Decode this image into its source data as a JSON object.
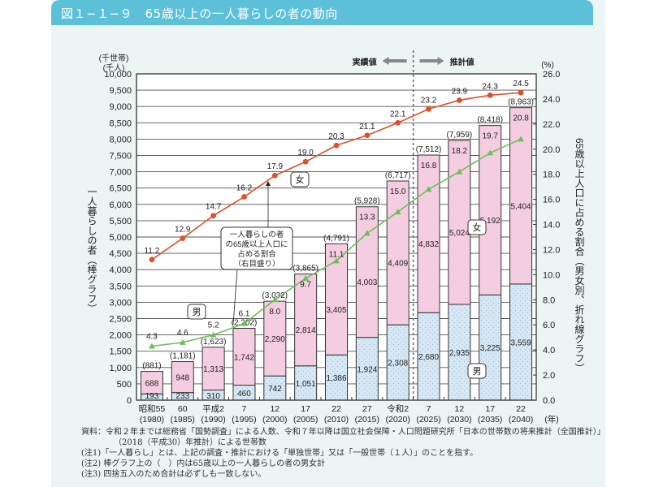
{
  "header": {
    "title": "図１−１−９　65歳以上の一人暮らしの者の動向"
  },
  "chart_data": {
    "type": "bar",
    "title": "65歳以上の一人暮らしの者の動向",
    "categories": [
      {
        "era": "昭和55",
        "year": "(1980)"
      },
      {
        "era": "60",
        "year": "(1985)"
      },
      {
        "era": "平成2",
        "year": "(1990)"
      },
      {
        "era": "7",
        "year": "(1995)"
      },
      {
        "era": "12",
        "year": "(2000)"
      },
      {
        "era": "17",
        "year": "(2005)"
      },
      {
        "era": "22",
        "year": "(2010)"
      },
      {
        "era": "27",
        "year": "(2015)"
      },
      {
        "era": "令和2",
        "year": "(2020)"
      },
      {
        "era": "7",
        "year": "(2025)"
      },
      {
        "era": "12",
        "year": "(2030)"
      },
      {
        "era": "17",
        "year": "(2035)"
      },
      {
        "era": "22",
        "year": "(2040)"
      }
    ],
    "x_unit": "(年)",
    "bar_series": [
      {
        "name": "男",
        "color": "#d6e8f5",
        "values": [
          193,
          233,
          310,
          460,
          742,
          1051,
          1386,
          1924,
          2308,
          2680,
          2935,
          3225,
          3559
        ]
      },
      {
        "name": "女",
        "color": "#f5cde0",
        "values": [
          688,
          948,
          1313,
          1742,
          2290,
          2814,
          3405,
          4003,
          4409,
          4832,
          5024,
          5192,
          5404
        ]
      }
    ],
    "bar_totals": [
      "(881)",
      "(1,181)",
      "(1,623)",
      "(2,202)",
      "(3,032)",
      "(3,865)",
      "(4,791)",
      "(5,928)",
      "(6,717)",
      "(7,512)",
      "(7,959)",
      "(8,418)",
      "(8,963)"
    ],
    "line_series": [
      {
        "name": "女",
        "color": "#e0502a",
        "marker": "circle",
        "values": [
          11.2,
          12.9,
          14.7,
          16.2,
          17.9,
          19.0,
          20.3,
          21.1,
          22.1,
          23.2,
          23.9,
          24.3,
          24.5
        ]
      },
      {
        "name": "男",
        "color": "#6cbf5c",
        "marker": "triangle",
        "values": [
          4.3,
          4.6,
          5.2,
          6.1,
          8.0,
          9.7,
          11.1,
          13.3,
          15.0,
          16.8,
          18.2,
          19.7,
          20.8
        ]
      }
    ],
    "y_left": {
      "unit_top": "(千世帯)",
      "unit_bottom": "(千人)",
      "label": "一人暮らしの者（棒グラフ）",
      "ylim": [
        0,
        10000
      ],
      "step": 500,
      "ticks": [
        "0",
        "500",
        "1,000",
        "1,500",
        "2,000",
        "2,500",
        "3,000",
        "3,500",
        "4,000",
        "4,500",
        "5,000",
        "5,500",
        "6,000",
        "6,500",
        "7,000",
        "7,500",
        "8,000",
        "8,500",
        "9,000",
        "9,500",
        "10,000"
      ]
    },
    "y_right": {
      "unit": "(%)",
      "label": "65歳以上人口に占める割合（男女別、折れ線グラフ）",
      "ylim": [
        0,
        26
      ],
      "step": 2,
      "ticks": [
        "0.0",
        "2.0",
        "4.0",
        "6.0",
        "8.0",
        "10.0",
        "12.0",
        "14.0",
        "16.0",
        "18.0",
        "20.0",
        "22.0",
        "24.0",
        "26.0"
      ]
    },
    "divider_after_index": 8,
    "annotations": {
      "actual": "実績値",
      "projected": "推計値",
      "callout": [
        "一人暮らしの者",
        "の65歳以上人口に",
        "占める割合",
        "（右目盛り）"
      ],
      "label_female_line": "女",
      "label_male_line": "男",
      "label_female_bar": "女",
      "label_male_bar": "男"
    },
    "grid": true
  },
  "notes": [
    "資料：令和２年までは総務省「国勢調査」による人数、令和７年以降は国立社会保障・人口問題研究所「日本の世帯数の将来推計（全国推計）」",
    "（2018（平成30）年推計）による世帯数",
    "(注1)「一人暮らし」とは、上記の調査・推計における「単独世帯」又は「一般世帯（１人）」のことを指す。",
    "(注2) 棒グラフ上の（　）内は65歳以上の一人暮らしの者の男女計",
    "(注3) 四捨五入のため合計は必ずしも一致しない。"
  ]
}
